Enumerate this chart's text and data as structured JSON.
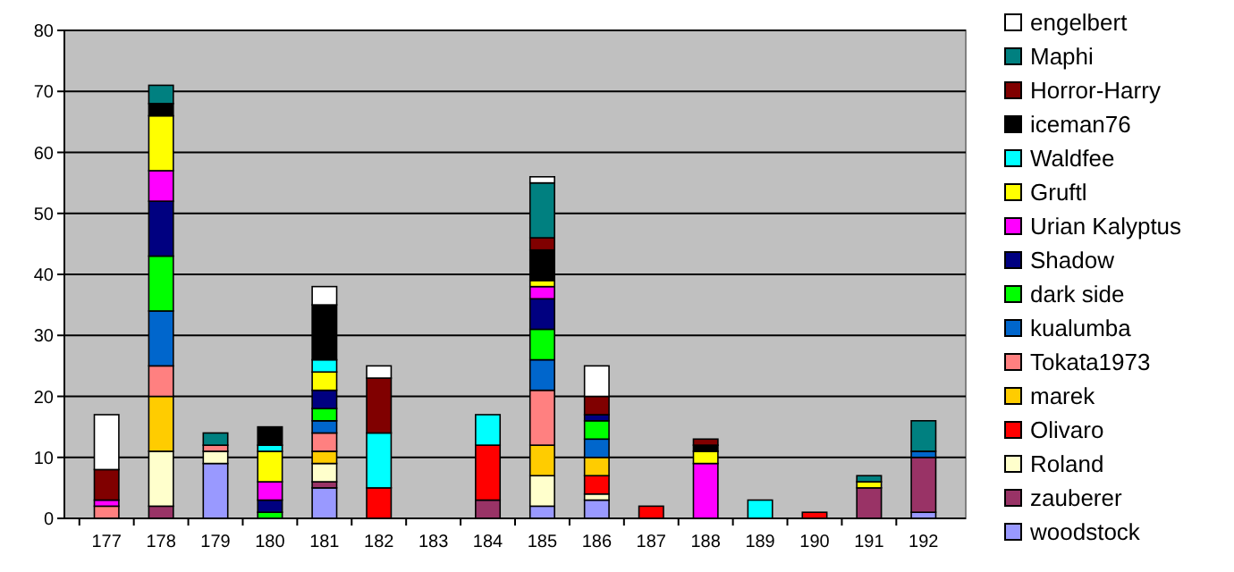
{
  "chart_data": {
    "type": "bar",
    "stacked": true,
    "categories": [
      "177",
      "178",
      "179",
      "180",
      "181",
      "182",
      "183",
      "184",
      "185",
      "186",
      "187",
      "188",
      "189",
      "190",
      "191",
      "192"
    ],
    "ylim": [
      0,
      80
    ],
    "yticks": [
      0,
      10,
      20,
      30,
      40,
      50,
      60,
      70,
      80
    ],
    "grid": "y",
    "legend": "right",
    "series": [
      {
        "name": "woodstock",
        "color": "#9999ff",
        "values": [
          0,
          0,
          9,
          0,
          5,
          0,
          0,
          0,
          2,
          3,
          0,
          0,
          0,
          0,
          0,
          1
        ]
      },
      {
        "name": "zauberer",
        "color": "#993366",
        "values": [
          0,
          2,
          0,
          0,
          1,
          0,
          0,
          3,
          0,
          0,
          0,
          0,
          0,
          0,
          5,
          9
        ]
      },
      {
        "name": "Roland",
        "color": "#ffffcc",
        "values": [
          0,
          9,
          2,
          0,
          3,
          0,
          0,
          0,
          5,
          1,
          0,
          0,
          0,
          0,
          0,
          0
        ]
      },
      {
        "name": "Olivaro",
        "color": "#ff0000",
        "values": [
          0,
          0,
          0,
          0,
          0,
          5,
          0,
          9,
          0,
          3,
          2,
          0,
          0,
          1,
          0,
          0
        ]
      },
      {
        "name": "marek",
        "color": "#ffcc00",
        "values": [
          0,
          9,
          0,
          0,
          2,
          0,
          0,
          0,
          5,
          3,
          0,
          0,
          0,
          0,
          0,
          0
        ]
      },
      {
        "name": "Tokata1973",
        "color": "#ff8080",
        "values": [
          2,
          5,
          1,
          0,
          3,
          0,
          0,
          0,
          9,
          0,
          0,
          0,
          0,
          0,
          0,
          0
        ]
      },
      {
        "name": "kualumba",
        "color": "#0066cc",
        "values": [
          0,
          9,
          0,
          0,
          2,
          0,
          0,
          0,
          5,
          3,
          0,
          0,
          0,
          0,
          0,
          1
        ]
      },
      {
        "name": "dark side",
        "color": "#00ff00",
        "values": [
          0,
          9,
          0,
          1,
          2,
          0,
          0,
          0,
          5,
          3,
          0,
          0,
          0,
          0,
          0,
          0
        ]
      },
      {
        "name": "Shadow",
        "color": "#000080",
        "values": [
          0,
          9,
          0,
          2,
          3,
          0,
          0,
          0,
          5,
          1,
          0,
          0,
          0,
          0,
          0,
          0
        ]
      },
      {
        "name": "Urian Kalyptus",
        "color": "#ff00ff",
        "values": [
          1,
          5,
          0,
          3,
          0,
          0,
          0,
          0,
          2,
          0,
          0,
          9,
          0,
          0,
          0,
          0
        ]
      },
      {
        "name": "Gruftl",
        "color": "#ffff00",
        "values": [
          0,
          9,
          0,
          5,
          3,
          0,
          0,
          0,
          1,
          0,
          0,
          2,
          0,
          0,
          1,
          0
        ]
      },
      {
        "name": "Waldfee",
        "color": "#00ffff",
        "values": [
          0,
          0,
          0,
          1,
          2,
          9,
          0,
          5,
          0,
          0,
          0,
          0,
          3,
          0,
          0,
          0
        ]
      },
      {
        "name": "iceman76",
        "color": "#000000",
        "values": [
          0,
          2,
          0,
          3,
          9,
          0,
          0,
          0,
          5,
          0,
          0,
          1,
          0,
          0,
          0,
          0
        ]
      },
      {
        "name": "Horror-Harry",
        "color": "#800000",
        "values": [
          5,
          0,
          0,
          0,
          0,
          9,
          0,
          0,
          2,
          3,
          0,
          1,
          0,
          0,
          0,
          0
        ]
      },
      {
        "name": "Maphi",
        "color": "#008080",
        "values": [
          0,
          3,
          2,
          0,
          0,
          0,
          0,
          0,
          9,
          0,
          0,
          0,
          0,
          0,
          1,
          5
        ]
      },
      {
        "name": "engelbert",
        "color": "#ffffff",
        "values": [
          9,
          0,
          0,
          0,
          3,
          2,
          0,
          0,
          1,
          5,
          0,
          0,
          0,
          0,
          0,
          0
        ]
      }
    ]
  }
}
